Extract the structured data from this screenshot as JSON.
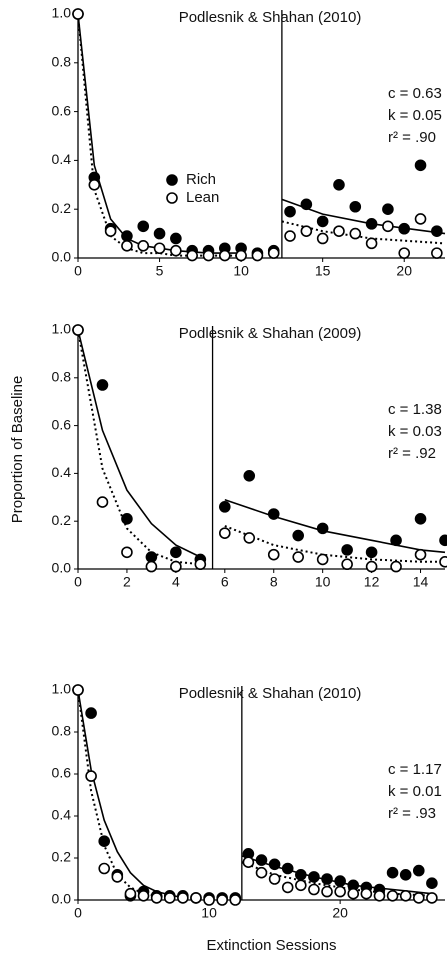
{
  "chart_data": [
    {
      "type": "scatter",
      "title": "Podlesnik & Shahan (2010)",
      "xlim": [
        0,
        22.5
      ],
      "xticks": [
        0,
        5,
        10,
        15,
        20
      ],
      "ylim": [
        0,
        1
      ],
      "yticks": [
        {
          "value": 0,
          "label": "0.0"
        },
        0.2,
        0.4,
        0.6,
        0.8,
        {
          "value": 1,
          "label": "1.0"
        }
      ],
      "phase_change": 12.5,
      "legend": "center-left",
      "annotations": [
        "c = 0.63",
        "k = 0.05",
        "r² = .90"
      ],
      "x": [
        0,
        1,
        2,
        3,
        4,
        5,
        6,
        7,
        8,
        9,
        10,
        11,
        12,
        13,
        14,
        15,
        16,
        17,
        18,
        19,
        20,
        21,
        22
      ],
      "series": [
        {
          "name": "Rich",
          "marker": "filled",
          "color": "#000000",
          "values": [
            1.0,
            0.33,
            0.12,
            0.09,
            0.13,
            0.1,
            0.08,
            0.03,
            0.03,
            0.04,
            0.04,
            0.02,
            0.03,
            0.19,
            0.22,
            0.15,
            0.3,
            0.21,
            0.14,
            0.2,
            0.12,
            0.38,
            0.11
          ]
        },
        {
          "name": "Lean",
          "marker": "open",
          "color": "#000000",
          "values": [
            1.0,
            0.3,
            0.11,
            0.05,
            0.05,
            0.04,
            0.03,
            0.01,
            0.01,
            0.01,
            0.01,
            0.01,
            0.02,
            0.09,
            0.11,
            0.08,
            0.11,
            0.1,
            0.06,
            0.13,
            0.02,
            0.16,
            0.02
          ]
        }
      ],
      "fits": [
        {
          "style": "solid",
          "color": "#000000",
          "x": [
            0,
            1,
            2,
            3,
            4,
            5,
            6,
            8,
            10,
            12.5,
            12.5,
            15,
            18,
            22.5
          ],
          "values": [
            1.0,
            0.38,
            0.16,
            0.08,
            0.05,
            0.04,
            0.03,
            0.02,
            0.02,
            null,
            0.24,
            0.18,
            0.14,
            0.1
          ]
        },
        {
          "style": "dotted",
          "color": "#000000",
          "x": [
            0,
            1,
            2,
            3,
            4,
            5,
            6,
            8,
            10,
            12.5,
            12.5,
            15,
            18,
            22.5
          ],
          "values": [
            1.0,
            0.28,
            0.09,
            0.04,
            0.02,
            0.02,
            0.01,
            0.01,
            0.01,
            null,
            0.15,
            0.11,
            0.08,
            0.06
          ]
        }
      ]
    },
    {
      "type": "scatter",
      "title": "Podlesnik & Shahan (2009)",
      "ylabel": "Proportion of Baseline",
      "xlim": [
        0,
        15
      ],
      "xticks": [
        0,
        2,
        4,
        6,
        8,
        10,
        12,
        14
      ],
      "ylim": [
        0,
        1
      ],
      "yticks": [
        {
          "value": 0,
          "label": "0.0"
        },
        0.2,
        0.4,
        0.6,
        0.8,
        {
          "value": 1,
          "label": "1.0"
        }
      ],
      "phase_change": 5.5,
      "annotations": [
        "c = 1.38",
        "k = 0.03",
        "r² = .92"
      ],
      "x": [
        0,
        1,
        2,
        3,
        4,
        5,
        6,
        7,
        8,
        9,
        10,
        11,
        12,
        13,
        14,
        15
      ],
      "series": [
        {
          "marker": "filled",
          "color": "#000000",
          "values": [
            1.0,
            0.77,
            0.21,
            0.05,
            0.07,
            0.04,
            0.26,
            0.39,
            0.23,
            0.14,
            0.17,
            0.08,
            0.07,
            0.12,
            0.21,
            0.12
          ]
        },
        {
          "marker": "open",
          "color": "#000000",
          "values": [
            1.0,
            0.28,
            0.07,
            0.01,
            0.01,
            0.02,
            0.15,
            0.13,
            0.06,
            0.05,
            0.04,
            0.02,
            0.01,
            0.01,
            0.06,
            0.03
          ]
        }
      ],
      "fits": [
        {
          "style": "solid",
          "color": "#000000",
          "x": [
            0,
            1,
            2,
            3,
            4,
            5,
            5.5,
            6,
            8,
            10,
            12,
            14,
            15
          ],
          "values": [
            1.0,
            0.58,
            0.33,
            0.19,
            0.1,
            0.05,
            null,
            0.29,
            0.22,
            0.16,
            0.12,
            0.08,
            0.07
          ]
        },
        {
          "style": "dotted",
          "color": "#000000",
          "x": [
            0,
            1,
            2,
            3,
            4,
            5,
            5.5,
            6,
            8,
            10,
            12,
            14,
            15
          ],
          "values": [
            1.0,
            0.42,
            0.17,
            0.07,
            0.03,
            0.02,
            null,
            0.18,
            0.1,
            0.06,
            0.04,
            0.03,
            0.03
          ]
        }
      ]
    },
    {
      "type": "scatter",
      "title": "Podlesnik & Shahan (2010)",
      "xlabel": "Extinction Sessions",
      "xlim": [
        0,
        28
      ],
      "xticks": [
        0,
        10,
        20
      ],
      "ylim": [
        0,
        1
      ],
      "yticks": [
        {
          "value": 0,
          "label": "0.0"
        },
        0.2,
        0.4,
        0.6,
        0.8,
        {
          "value": 1,
          "label": "1.0"
        }
      ],
      "phase_change": 12.5,
      "annotations": [
        "c = 1.17",
        "k = 0.01",
        "r² = .93"
      ],
      "x": [
        0,
        1,
        2,
        3,
        4,
        5,
        6,
        7,
        8,
        9,
        10,
        11,
        12,
        13,
        14,
        15,
        16,
        17,
        18,
        19,
        20,
        21,
        22,
        23,
        24,
        25,
        26,
        27
      ],
      "series": [
        {
          "marker": "filled",
          "color": "#000000",
          "values": [
            1.0,
            0.89,
            0.28,
            0.12,
            0.02,
            0.04,
            0.02,
            0.02,
            0.02,
            0.01,
            0.01,
            0.01,
            0.01,
            0.22,
            0.19,
            0.17,
            0.15,
            0.12,
            0.11,
            0.1,
            0.09,
            0.07,
            0.06,
            0.05,
            0.13,
            0.12,
            0.14,
            0.08
          ]
        },
        {
          "marker": "open",
          "color": "#000000",
          "values": [
            1.0,
            0.59,
            0.15,
            0.11,
            0.03,
            0.02,
            0.01,
            0.01,
            0.01,
            0.01,
            0,
            0,
            0,
            0.18,
            0.13,
            0.1,
            0.06,
            0.07,
            0.05,
            0.04,
            0.04,
            0.03,
            0.03,
            0.02,
            0.02,
            0.02,
            0.01,
            0.01
          ]
        }
      ],
      "fits": [
        {
          "style": "solid",
          "color": "#000000",
          "x": [
            0,
            1,
            2,
            3,
            4,
            5,
            6,
            8,
            12.5,
            12.5,
            15,
            18,
            21,
            24,
            27
          ],
          "values": [
            1.0,
            0.62,
            0.38,
            0.23,
            0.13,
            0.07,
            0.04,
            0.01,
            null,
            0.21,
            0.16,
            0.11,
            0.07,
            0.05,
            0.03
          ]
        },
        {
          "style": "dotted",
          "color": "#000000",
          "x": [
            0,
            1,
            2,
            3,
            4,
            5,
            7,
            12.5,
            12.5,
            15,
            18,
            21,
            24,
            27
          ],
          "values": [
            1.0,
            0.52,
            0.26,
            0.12,
            0.06,
            0.03,
            0.01,
            null,
            0.18,
            0.12,
            0.08,
            0.05,
            0.03,
            0.02
          ]
        }
      ]
    }
  ]
}
